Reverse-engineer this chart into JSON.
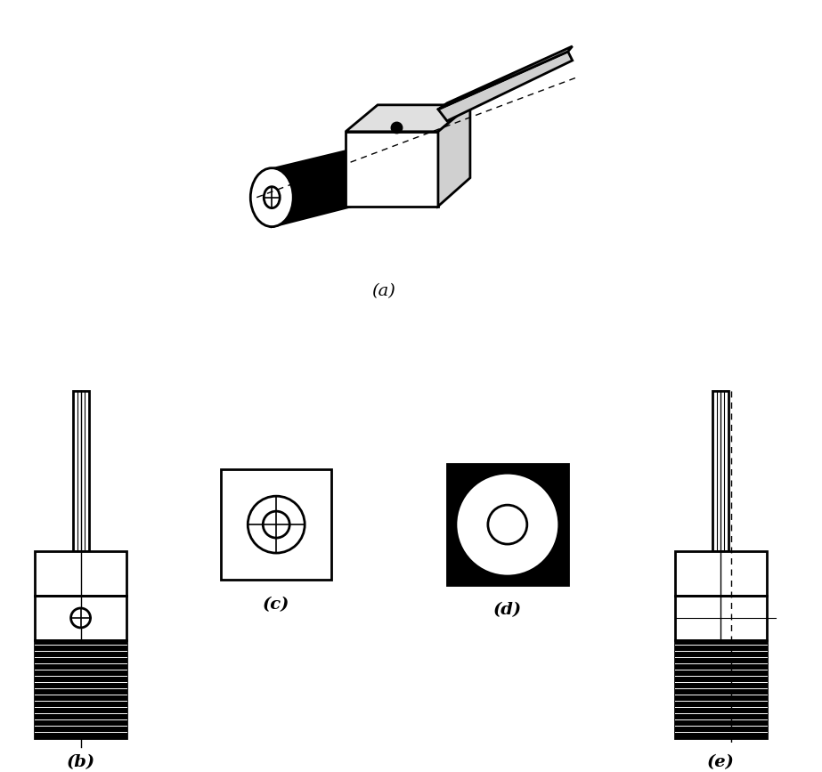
{
  "bg_color": "#ffffff",
  "line_color": "#000000",
  "fill_black": "#000000",
  "fill_white": "#ffffff",
  "fig_width": 9.23,
  "fig_height": 8.67,
  "label_a": "(a)",
  "label_b": "(b)",
  "label_c": "(c)",
  "label_d": "(d)",
  "label_e": "(e)",
  "label_fontsize": 14,
  "label_fontstyle": "italic"
}
